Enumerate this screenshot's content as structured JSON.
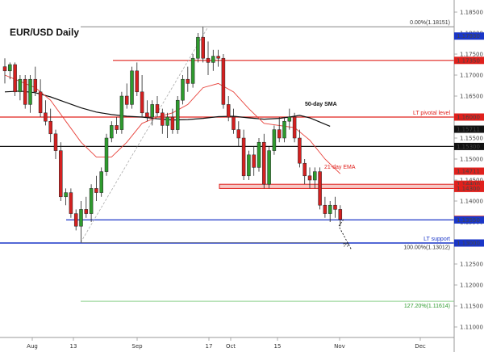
{
  "chart_data": {
    "type": "candlestick",
    "title": "EUR/USD Daily",
    "ylim": [
      1.1085,
      1.1855
    ],
    "y_ticks": [
      1.11,
      1.115,
      1.12,
      1.125,
      1.13,
      1.135,
      1.14,
      1.145,
      1.15,
      1.155,
      1.16,
      1.165,
      1.17,
      1.175,
      1.18,
      1.185
    ],
    "y_tick_labels": [
      "1.11000",
      "1.11500",
      "1.12000",
      "1.12500",
      "1.13000",
      "1.13500",
      "1.14000",
      "1.14500",
      "1.15000",
      "1.15500",
      "1.16000",
      "1.16500",
      "1.17000",
      "1.17500",
      "1.18000",
      "1.18500"
    ],
    "x_labels": [
      "Aug",
      "13",
      "Sep",
      "17",
      "Oct",
      "15",
      "Nov",
      "Dec"
    ],
    "price_tags": [
      {
        "value": 1.1793,
        "label": "1.17930",
        "color": "#1a36c8"
      },
      {
        "value": 1.1735,
        "label": "1.17350",
        "color": "#e0201c"
      },
      {
        "value": 1.16,
        "label": "1.16000",
        "color": "#e0201c"
      },
      {
        "value": 1.15711,
        "label": "1.15711",
        "color": "#111111"
      },
      {
        "value": 1.153,
        "label": "1.15300",
        "color": "#111111"
      },
      {
        "value": 1.14711,
        "label": "1.14711",
        "color": "#e0201c"
      },
      {
        "value": 1.144,
        "label": "1.14400",
        "color": "#e0201c"
      },
      {
        "value": 1.143,
        "label": "1.14300",
        "color": "#e0201c"
      },
      {
        "value": 1.13563,
        "label": "1.13563",
        "color": "#e0201c"
      },
      {
        "value": 1.1355,
        "label": "1.13550",
        "color": "#1a36c8"
      },
      {
        "value": 1.13,
        "label": "1.13000",
        "color": "#1a36c8"
      }
    ],
    "levels": [
      {
        "value": 1.18151,
        "color": "#888888",
        "label": "0.00%(1.18151)"
      },
      {
        "value": 1.1735,
        "color": "#e0201c",
        "label": ""
      },
      {
        "value": 1.16,
        "color": "#e0201c",
        "label": "LT pivotal level"
      },
      {
        "value": 1.153,
        "color": "#111111",
        "label": ""
      },
      {
        "value": 1.1355,
        "color": "#1a36c8",
        "label": ""
      },
      {
        "value": 1.13,
        "color": "#1a36c8",
        "label": "LT support"
      },
      {
        "value": 1.13012,
        "color": "#888888",
        "label": "100.00%(1.13012)"
      },
      {
        "value": 1.11614,
        "color": "#8fd08f",
        "label": "127.20%(1.11614)"
      }
    ],
    "annotations": {
      "sma_label": "50-day SMA",
      "ema_label": "21-day EMA",
      "question": "??"
    },
    "candles": [
      [
        1.172,
        1.174,
        1.168,
        1.171
      ],
      [
        1.171,
        1.173,
        1.169,
        1.1725
      ],
      [
        1.1725,
        1.173,
        1.165,
        1.166
      ],
      [
        1.166,
        1.17,
        1.164,
        1.169
      ],
      [
        1.169,
        1.17,
        1.162,
        1.163
      ],
      [
        1.163,
        1.17,
        1.161,
        1.169
      ],
      [
        1.169,
        1.172,
        1.165,
        1.166
      ],
      [
        1.166,
        1.169,
        1.16,
        1.161
      ],
      [
        1.161,
        1.164,
        1.158,
        1.159
      ],
      [
        1.159,
        1.162,
        1.154,
        1.156
      ],
      [
        1.156,
        1.157,
        1.15,
        1.152
      ],
      [
        1.152,
        1.154,
        1.14,
        1.141
      ],
      [
        1.141,
        1.143,
        1.139,
        1.142
      ],
      [
        1.142,
        1.143,
        1.136,
        1.137
      ],
      [
        1.137,
        1.138,
        1.133,
        1.134
      ],
      [
        1.134,
        1.14,
        1.1301,
        1.138
      ],
      [
        1.138,
        1.141,
        1.136,
        1.137
      ],
      [
        1.137,
        1.144,
        1.135,
        1.143
      ],
      [
        1.143,
        1.146,
        1.14,
        1.142
      ],
      [
        1.142,
        1.148,
        1.141,
        1.147
      ],
      [
        1.147,
        1.156,
        1.146,
        1.155
      ],
      [
        1.155,
        1.159,
        1.154,
        1.158
      ],
      [
        1.158,
        1.16,
        1.156,
        1.157
      ],
      [
        1.157,
        1.166,
        1.156,
        1.165
      ],
      [
        1.165,
        1.168,
        1.162,
        1.163
      ],
      [
        1.163,
        1.172,
        1.162,
        1.171
      ],
      [
        1.171,
        1.173,
        1.165,
        1.166
      ],
      [
        1.166,
        1.17,
        1.16,
        1.161
      ],
      [
        1.161,
        1.164,
        1.159,
        1.16
      ],
      [
        1.16,
        1.164,
        1.158,
        1.163
      ],
      [
        1.163,
        1.165,
        1.16,
        1.161
      ],
      [
        1.161,
        1.162,
        1.156,
        1.158
      ],
      [
        1.158,
        1.161,
        1.155,
        1.16
      ],
      [
        1.16,
        1.162,
        1.156,
        1.157
      ],
      [
        1.157,
        1.165,
        1.156,
        1.164
      ],
      [
        1.164,
        1.17,
        1.163,
        1.169
      ],
      [
        1.169,
        1.172,
        1.166,
        1.168
      ],
      [
        1.168,
        1.175,
        1.167,
        1.174
      ],
      [
        1.174,
        1.18,
        1.173,
        1.179
      ],
      [
        1.179,
        1.1815,
        1.173,
        1.174
      ],
      [
        1.174,
        1.178,
        1.17,
        1.173
      ],
      [
        1.173,
        1.176,
        1.171,
        1.1745
      ],
      [
        1.1745,
        1.176,
        1.172,
        1.174
      ],
      [
        1.174,
        1.175,
        1.162,
        1.163
      ],
      [
        1.163,
        1.165,
        1.159,
        1.16
      ],
      [
        1.16,
        1.162,
        1.156,
        1.157
      ],
      [
        1.157,
        1.159,
        1.153,
        1.155
      ],
      [
        1.155,
        1.157,
        1.145,
        1.146
      ],
      [
        1.146,
        1.152,
        1.145,
        1.151
      ],
      [
        1.151,
        1.153,
        1.146,
        1.148
      ],
      [
        1.148,
        1.155,
        1.147,
        1.154
      ],
      [
        1.154,
        1.156,
        1.143,
        1.144
      ],
      [
        1.144,
        1.153,
        1.143,
        1.152
      ],
      [
        1.152,
        1.158,
        1.151,
        1.157
      ],
      [
        1.157,
        1.16,
        1.154,
        1.155
      ],
      [
        1.155,
        1.16,
        1.154,
        1.159
      ],
      [
        1.159,
        1.162,
        1.157,
        1.16
      ],
      [
        1.16,
        1.161,
        1.154,
        1.155
      ],
      [
        1.155,
        1.157,
        1.148,
        1.149
      ],
      [
        1.149,
        1.15,
        1.144,
        1.146
      ],
      [
        1.146,
        1.148,
        1.143,
        1.145
      ],
      [
        1.145,
        1.148,
        1.143,
        1.147
      ],
      [
        1.147,
        1.148,
        1.138,
        1.139
      ],
      [
        1.139,
        1.141,
        1.136,
        1.137
      ],
      [
        1.137,
        1.14,
        1.135,
        1.139
      ],
      [
        1.139,
        1.141,
        1.136,
        1.138
      ],
      [
        1.138,
        1.139,
        1.134,
        1.1356
      ]
    ],
    "sma50": [
      [
        0,
        1.166
      ],
      [
        3,
        1.1662
      ],
      [
        6,
        1.1658
      ],
      [
        9,
        1.1648
      ],
      [
        12,
        1.1635
      ],
      [
        15,
        1.1622
      ],
      [
        18,
        1.1612
      ],
      [
        21,
        1.1606
      ],
      [
        24,
        1.1602
      ],
      [
        27,
        1.16
      ],
      [
        30,
        1.1596
      ],
      [
        33,
        1.1593
      ],
      [
        36,
        1.1594
      ],
      [
        39,
        1.1597
      ],
      [
        42,
        1.1601
      ],
      [
        45,
        1.1602
      ],
      [
        48,
        1.1598
      ],
      [
        51,
        1.1595
      ],
      [
        54,
        1.1597
      ],
      [
        56,
        1.16
      ],
      [
        58,
        1.1604
      ],
      [
        60,
        1.1598
      ],
      [
        62,
        1.1588
      ],
      [
        64,
        1.1578
      ]
    ],
    "ema21": [
      [
        0,
        1.17
      ],
      [
        3,
        1.1685
      ],
      [
        6,
        1.167
      ],
      [
        9,
        1.164
      ],
      [
        12,
        1.159
      ],
      [
        15,
        1.154
      ],
      [
        18,
        1.1505
      ],
      [
        21,
        1.1505
      ],
      [
        24,
        1.154
      ],
      [
        27,
        1.1585
      ],
      [
        30,
        1.16
      ],
      [
        33,
        1.161
      ],
      [
        36,
        1.163
      ],
      [
        39,
        1.167
      ],
      [
        42,
        1.168
      ],
      [
        45,
        1.166
      ],
      [
        48,
        1.162
      ],
      [
        51,
        1.1585
      ],
      [
        54,
        1.158
      ],
      [
        57,
        1.1575
      ],
      [
        60,
        1.1545
      ],
      [
        63,
        1.15
      ],
      [
        66,
        1.1465
      ]
    ]
  }
}
